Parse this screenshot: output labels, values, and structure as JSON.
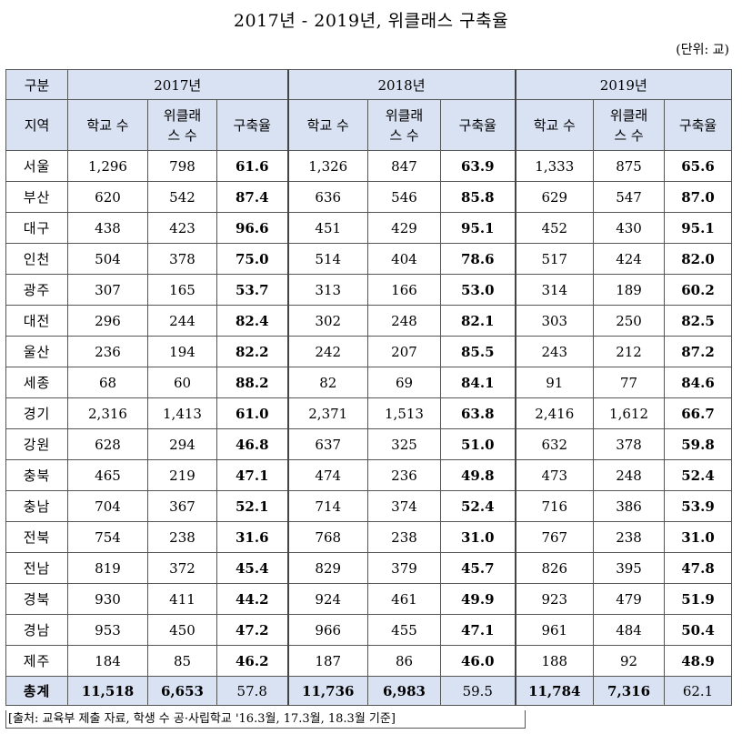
{
  "title": "2017년 - 2019년, 위클래스 구축율",
  "unit": "(단위: 교)",
  "header": {
    "category": "구분",
    "years": [
      "2017년",
      "2018년",
      "2019년"
    ],
    "region": "지역",
    "school_count": "학교 수",
    "wee_line1": "위클래",
    "wee_line2": "스 수",
    "rate": "구축율"
  },
  "rows": [
    {
      "region": "서울",
      "y2017": [
        "1,296",
        "798",
        "61.6"
      ],
      "y2018": [
        "1,326",
        "847",
        "63.9"
      ],
      "y2019": [
        "1,333",
        "875",
        "65.6"
      ]
    },
    {
      "region": "부산",
      "y2017": [
        "620",
        "542",
        "87.4"
      ],
      "y2018": [
        "636",
        "546",
        "85.8"
      ],
      "y2019": [
        "629",
        "547",
        "87.0"
      ]
    },
    {
      "region": "대구",
      "y2017": [
        "438",
        "423",
        "96.6"
      ],
      "y2018": [
        "451",
        "429",
        "95.1"
      ],
      "y2019": [
        "452",
        "430",
        "95.1"
      ]
    },
    {
      "region": "인천",
      "y2017": [
        "504",
        "378",
        "75.0"
      ],
      "y2018": [
        "514",
        "404",
        "78.6"
      ],
      "y2019": [
        "517",
        "424",
        "82.0"
      ]
    },
    {
      "region": "광주",
      "y2017": [
        "307",
        "165",
        "53.7"
      ],
      "y2018": [
        "313",
        "166",
        "53.0"
      ],
      "y2019": [
        "314",
        "189",
        "60.2"
      ]
    },
    {
      "region": "대전",
      "y2017": [
        "296",
        "244",
        "82.4"
      ],
      "y2018": [
        "302",
        "248",
        "82.1"
      ],
      "y2019": [
        "303",
        "250",
        "82.5"
      ]
    },
    {
      "region": "울산",
      "y2017": [
        "236",
        "194",
        "82.2"
      ],
      "y2018": [
        "242",
        "207",
        "85.5"
      ],
      "y2019": [
        "243",
        "212",
        "87.2"
      ]
    },
    {
      "region": "세종",
      "y2017": [
        "68",
        "60",
        "88.2"
      ],
      "y2018": [
        "82",
        "69",
        "84.1"
      ],
      "y2019": [
        "91",
        "77",
        "84.6"
      ]
    },
    {
      "region": "경기",
      "y2017": [
        "2,316",
        "1,413",
        "61.0"
      ],
      "y2018": [
        "2,371",
        "1,513",
        "63.8"
      ],
      "y2019": [
        "2,416",
        "1,612",
        "66.7"
      ]
    },
    {
      "region": "강원",
      "y2017": [
        "628",
        "294",
        "46.8"
      ],
      "y2018": [
        "637",
        "325",
        "51.0"
      ],
      "y2019": [
        "632",
        "378",
        "59.8"
      ]
    },
    {
      "region": "충북",
      "y2017": [
        "465",
        "219",
        "47.1"
      ],
      "y2018": [
        "474",
        "236",
        "49.8"
      ],
      "y2019": [
        "473",
        "248",
        "52.4"
      ]
    },
    {
      "region": "충남",
      "y2017": [
        "704",
        "367",
        "52.1"
      ],
      "y2018": [
        "714",
        "374",
        "52.4"
      ],
      "y2019": [
        "716",
        "386",
        "53.9"
      ]
    },
    {
      "region": "전북",
      "y2017": [
        "754",
        "238",
        "31.6"
      ],
      "y2018": [
        "768",
        "238",
        "31.0"
      ],
      "y2019": [
        "767",
        "238",
        "31.0"
      ]
    },
    {
      "region": "전남",
      "y2017": [
        "819",
        "372",
        "45.4"
      ],
      "y2018": [
        "829",
        "379",
        "45.7"
      ],
      "y2019": [
        "826",
        "395",
        "47.8"
      ]
    },
    {
      "region": "경북",
      "y2017": [
        "930",
        "411",
        "44.2"
      ],
      "y2018": [
        "924",
        "461",
        "49.9"
      ],
      "y2019": [
        "923",
        "479",
        "51.9"
      ]
    },
    {
      "region": "경남",
      "y2017": [
        "953",
        "450",
        "47.2"
      ],
      "y2018": [
        "966",
        "455",
        "47.1"
      ],
      "y2019": [
        "961",
        "484",
        "50.4"
      ]
    },
    {
      "region": "제주",
      "y2017": [
        "184",
        "85",
        "46.2"
      ],
      "y2018": [
        "187",
        "86",
        "46.0"
      ],
      "y2019": [
        "188",
        "92",
        "48.9"
      ]
    }
  ],
  "total": {
    "label": "총계",
    "y2017": [
      "11,518",
      "6,653",
      "57.8"
    ],
    "y2018": [
      "11,736",
      "6,983",
      "59.5"
    ],
    "y2019": [
      "11,784",
      "7,316",
      "62.1"
    ]
  },
  "source": "[출처: 교육부 제출 자료, 학생 수 공·사립학교 '16.3월, 17.3월, 18.3월 기준]"
}
